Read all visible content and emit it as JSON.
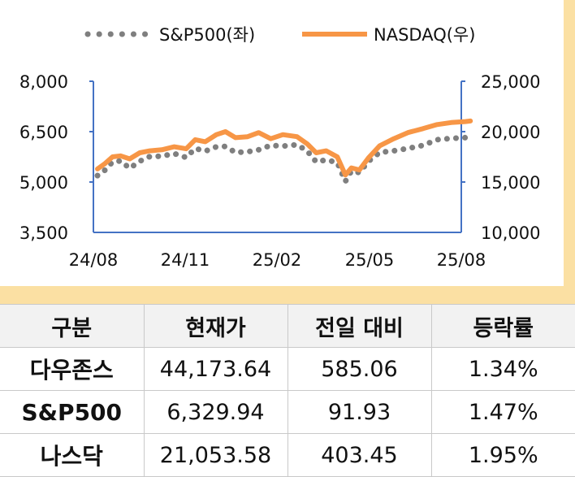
{
  "chart_data": {
    "type": "line",
    "legend": [
      "S&P500(좌)",
      "NASDAQ(우)"
    ],
    "legend_position": "top",
    "x_ticks": [
      "24/08",
      "24/11",
      "25/02",
      "25/05",
      "25/08"
    ],
    "y_left": {
      "ticks": [
        "3,500",
        "5,000",
        "6,500",
        "8,000"
      ],
      "range": [
        3500,
        8000
      ]
    },
    "y_right": {
      "ticks": [
        "10,000",
        "15,000",
        "20,000",
        "25,000"
      ],
      "range": [
        10000,
        25000
      ]
    },
    "grid": false,
    "series": [
      {
        "name": "S&P500(좌)",
        "axis": "left",
        "style": "dotted",
        "color": "#7f7f7f",
        "x": [
          "2024-08-05",
          "2024-08-12",
          "2024-08-20",
          "2024-08-28",
          "2024-09-06",
          "2024-09-16",
          "2024-09-26",
          "2024-10-08",
          "2024-10-20",
          "2024-11-01",
          "2024-11-10",
          "2024-11-20",
          "2024-12-01",
          "2024-12-10",
          "2024-12-20",
          "2025-01-01",
          "2025-01-12",
          "2025-01-24",
          "2025-02-05",
          "2025-02-19",
          "2025-03-01",
          "2025-03-10",
          "2025-03-20",
          "2025-03-31",
          "2025-04-08",
          "2025-04-14",
          "2025-04-22",
          "2025-05-01",
          "2025-05-12",
          "2025-05-26",
          "2025-06-09",
          "2025-06-24",
          "2025-07-08",
          "2025-07-22",
          "2025-08-05",
          "2025-08-10"
        ],
        "values": [
          5190,
          5340,
          5600,
          5630,
          5410,
          5620,
          5760,
          5770,
          5850,
          5730,
          6000,
          5920,
          6050,
          6060,
          5880,
          5900,
          5960,
          6090,
          6070,
          6110,
          5930,
          5600,
          5660,
          5580,
          5020,
          5330,
          5280,
          5620,
          5880,
          5930,
          6000,
          6090,
          6260,
          6300,
          6320,
          6330
        ]
      },
      {
        "name": "NASDAQ(우)",
        "axis": "right",
        "style": "solid",
        "color": "#f79646",
        "x": [
          "2024-08-05",
          "2024-08-12",
          "2024-08-20",
          "2024-08-28",
          "2024-09-06",
          "2024-09-16",
          "2024-09-26",
          "2024-10-08",
          "2024-10-20",
          "2024-11-01",
          "2024-11-10",
          "2024-11-20",
          "2024-12-01",
          "2024-12-10",
          "2024-12-20",
          "2025-01-01",
          "2025-01-12",
          "2025-01-24",
          "2025-02-05",
          "2025-02-19",
          "2025-03-01",
          "2025-03-10",
          "2025-03-20",
          "2025-03-31",
          "2025-04-08",
          "2025-04-14",
          "2025-04-22",
          "2025-05-01",
          "2025-05-12",
          "2025-05-26",
          "2025-06-09",
          "2025-06-24",
          "2025-07-08",
          "2025-07-22",
          "2025-08-05",
          "2025-08-10"
        ],
        "values": [
          16300,
          16800,
          17500,
          17600,
          17300,
          17900,
          18100,
          18200,
          18500,
          18300,
          19200,
          19000,
          19700,
          20000,
          19400,
          19500,
          19900,
          19300,
          19700,
          19500,
          18800,
          17900,
          18100,
          17500,
          15700,
          16400,
          16200,
          17400,
          18600,
          19300,
          19900,
          20300,
          20700,
          20900,
          21000,
          21053
        ]
      }
    ]
  },
  "table": {
    "headers": [
      "구분",
      "현재가",
      "전일 대비",
      "등락률"
    ],
    "rows": [
      [
        "다우존스",
        "44,173.64",
        "585.06",
        "1.34%"
      ],
      [
        "S&P500",
        "6,329.94",
        "91.93",
        "1.47%"
      ],
      [
        "나스닥",
        "21,053.58",
        "403.45",
        "1.95%"
      ]
    ]
  }
}
